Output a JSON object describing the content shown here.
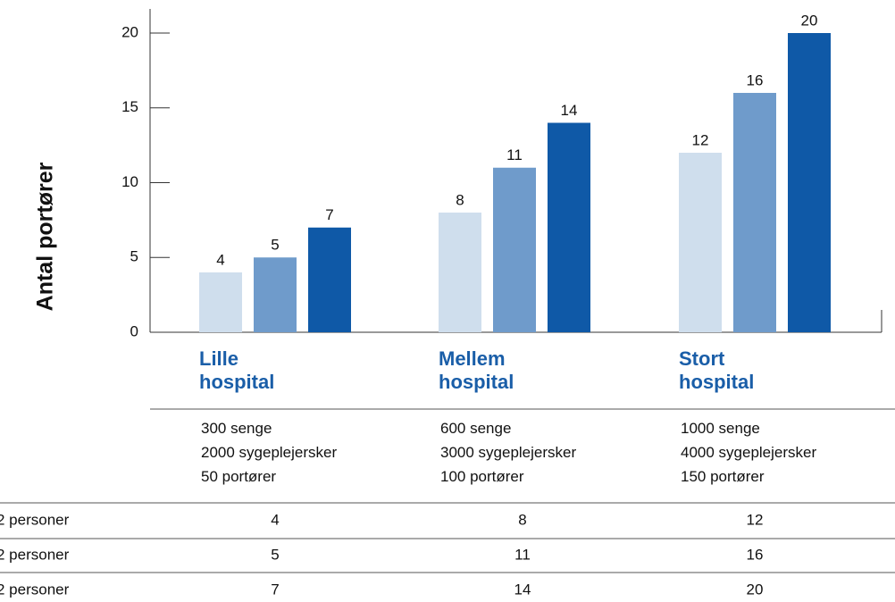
{
  "chart_data": {
    "type": "bar",
    "y_label": "Antal portører",
    "categories": [
      "Lille hospital",
      "Mellem hospital",
      "Stort hospital"
    ],
    "descriptions": [
      [
        "300 senge",
        "2000 sygeplejersker",
        "50 portører"
      ],
      [
        "600 senge",
        "3000 sygeplejersker",
        "100 portører"
      ],
      [
        "1000 senge",
        "4000 sygeplejersker",
        "150 portører"
      ]
    ],
    "series": [
      {
        "name": "2 personer",
        "color": "#cfdeed",
        "values": [
          4,
          8,
          12
        ]
      },
      {
        "name": "2 personer",
        "color": "#6f9bcb",
        "values": [
          5,
          11,
          16
        ]
      },
      {
        "name": "2 personer",
        "color": "#0f59a7",
        "values": [
          7,
          14,
          20
        ]
      }
    ],
    "ylim": [
      0,
      20
    ],
    "yticks": [
      0,
      5,
      10,
      15,
      20
    ]
  }
}
